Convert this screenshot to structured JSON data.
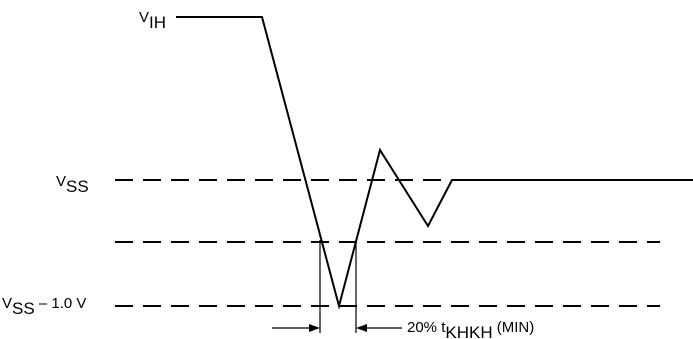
{
  "diagram": {
    "labels": {
      "vih": {
        "main": "V",
        "sub": "IH"
      },
      "vss": {
        "main": "V",
        "sub": "SS"
      },
      "vss_minus": {
        "main": "V",
        "sub": "SS",
        "suffix": " – 1.0 V"
      },
      "pulse_width": {
        "prefix": "20% t",
        "sub": "KHKH",
        "suffix": " (MIN)"
      }
    },
    "colors": {
      "line": "#000000",
      "background": "#ffffff"
    }
  }
}
